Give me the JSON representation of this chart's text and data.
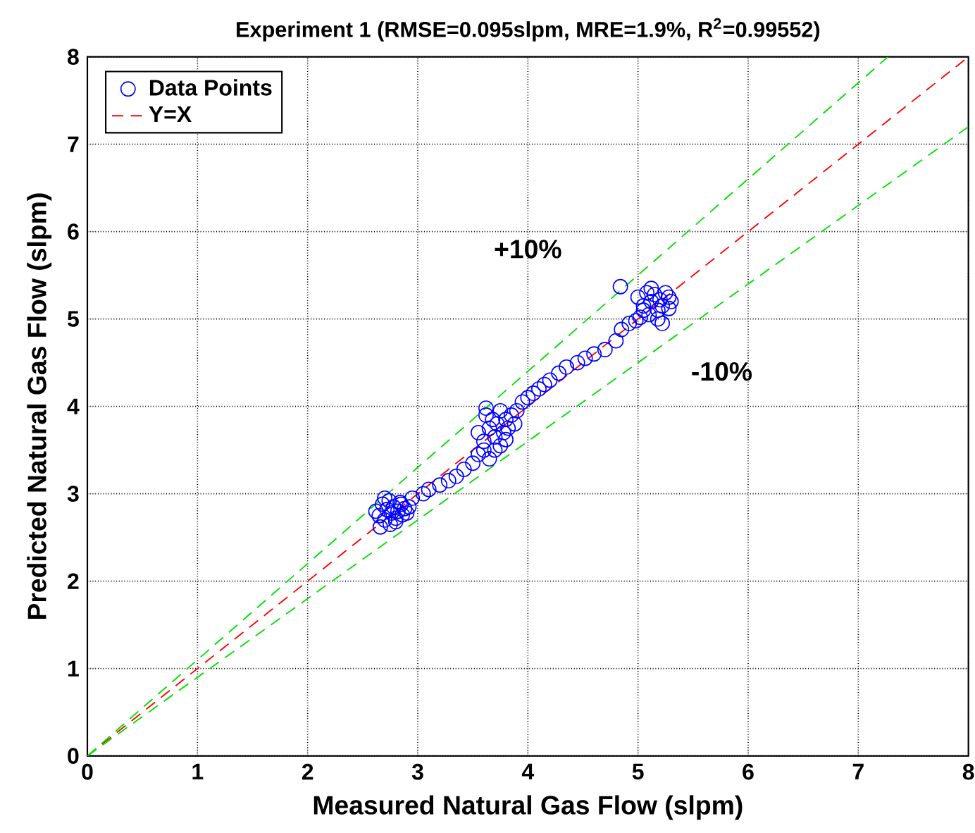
{
  "chart_data": {
    "type": "scatter",
    "title": "Experiment 1  (RMSE=0.095slpm, MRE=1.9%, R$^{2}$=0.99552)",
    "xlabel": "Measured Natural Gas Flow (slpm)",
    "ylabel": "Predicted Natural Gas Flow (slpm)",
    "xlim": [
      0,
      8
    ],
    "ylim": [
      0,
      8
    ],
    "xticks": [
      0,
      1,
      2,
      3,
      4,
      5,
      6,
      7,
      8
    ],
    "yticks": [
      0,
      1,
      2,
      3,
      4,
      5,
      6,
      7,
      8
    ],
    "grid": true,
    "legend": "top left",
    "series": [
      {
        "name": "Data Points",
        "marker": "circle",
        "color": "#0000ff",
        "x": [
          2.62,
          2.65,
          2.68,
          2.7,
          2.72,
          2.74,
          2.76,
          2.78,
          2.8,
          2.82,
          2.84,
          2.86,
          2.88,
          2.9,
          2.7,
          2.75,
          2.8,
          2.85,
          2.66,
          2.92,
          2.95,
          3.05,
          3.1,
          3.2,
          3.28,
          3.35,
          3.42,
          3.5,
          3.55,
          3.6,
          3.55,
          3.6,
          3.62,
          3.65,
          3.68,
          3.7,
          3.72,
          3.75,
          3.78,
          3.8,
          3.82,
          3.85,
          3.88,
          3.65,
          3.7,
          3.75,
          3.8,
          3.62,
          3.9,
          3.95,
          4.0,
          4.05,
          4.1,
          4.15,
          4.2,
          4.28,
          4.35,
          4.45,
          4.52,
          4.6,
          4.7,
          4.8,
          4.85,
          4.92,
          4.98,
          5.02,
          4.84,
          5.0,
          5.05,
          5.08,
          5.1,
          5.12,
          5.15,
          5.18,
          5.2,
          5.22,
          5.25,
          5.28,
          5.3,
          5.12,
          5.18,
          5.22,
          5.05,
          5.28
        ],
        "values": [
          2.8,
          2.75,
          2.88,
          2.7,
          2.82,
          2.92,
          2.78,
          2.85,
          2.72,
          2.8,
          2.9,
          2.76,
          2.83,
          2.78,
          2.95,
          2.65,
          2.68,
          2.88,
          2.62,
          2.85,
          2.95,
          3.0,
          3.05,
          3.1,
          3.15,
          3.2,
          3.28,
          3.35,
          3.45,
          3.5,
          3.7,
          3.6,
          3.9,
          3.75,
          3.85,
          3.65,
          3.8,
          3.95,
          3.7,
          3.85,
          3.75,
          3.9,
          3.8,
          3.4,
          3.5,
          3.55,
          3.62,
          3.98,
          3.95,
          4.05,
          4.1,
          4.15,
          4.2,
          4.25,
          4.3,
          4.38,
          4.45,
          4.5,
          4.55,
          4.6,
          4.65,
          4.75,
          4.88,
          4.95,
          4.98,
          5.02,
          5.37,
          5.25,
          5.15,
          5.3,
          5.05,
          5.2,
          5.28,
          5.1,
          5.22,
          5.15,
          5.3,
          5.12,
          5.2,
          5.35,
          5.0,
          4.95,
          5.1,
          5.25
        ]
      },
      {
        "name": "Y=X",
        "type": "line",
        "line_style": "dashed",
        "color": "#ff0000",
        "x": [
          0,
          8
        ],
        "values": [
          0,
          8
        ]
      },
      {
        "type": "line",
        "line_style": "dashed",
        "color": "#00e000",
        "x": [
          0,
          7.27
        ],
        "values": [
          0,
          8
        ]
      },
      {
        "type": "line",
        "line_style": "dashed",
        "color": "#00e000",
        "x": [
          0,
          8
        ],
        "values": [
          0,
          7.2
        ]
      }
    ],
    "annotations": [
      "+10%",
      "-10%"
    ]
  }
}
